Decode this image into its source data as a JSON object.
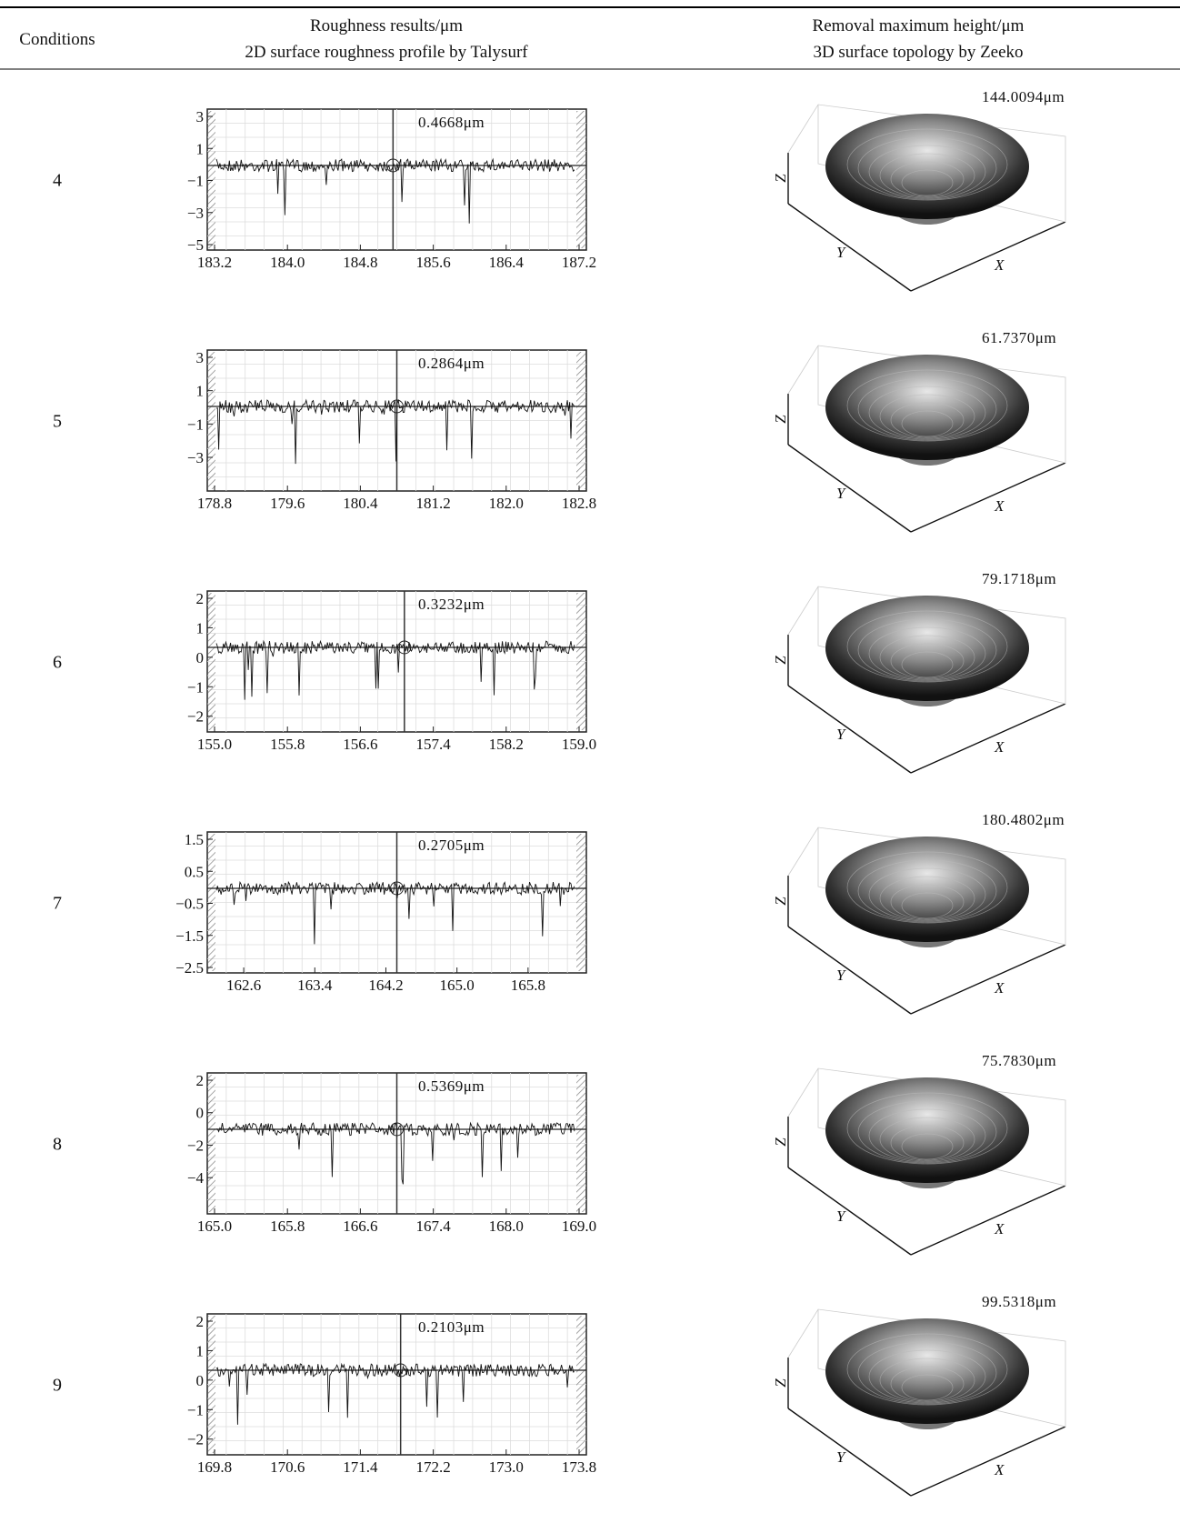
{
  "header": {
    "conditions": "Conditions",
    "roughness_title": "Roughness results/μm",
    "roughness_subtitle": "2D surface roughness profile by Talysurf",
    "removal_title": "Removal maximum height/μm",
    "removal_subtitle": "3D surface topology by Zeeko"
  },
  "axes": {
    "z": "Z",
    "y": "Y",
    "x": "X"
  },
  "rows": [
    {
      "condition": "4",
      "roughness": "0.4668μm",
      "y_ticks": [
        "3",
        "1",
        "−1",
        "−3",
        "−5"
      ],
      "x_ticks": [
        "183.2",
        "184.0",
        "184.8",
        "185.6",
        "186.4",
        "187.2"
      ],
      "removal_height": "144.0094μm"
    },
    {
      "condition": "5",
      "roughness": "0.2864μm",
      "y_ticks": [
        "3",
        "1",
        "−1",
        "−3"
      ],
      "x_ticks": [
        "178.8",
        "179.6",
        "180.4",
        "181.2",
        "182.0",
        "182.8"
      ],
      "removal_height": "61.7370μm"
    },
    {
      "condition": "6",
      "roughness": "0.3232μm",
      "y_ticks": [
        "2",
        "1",
        "0",
        "−1",
        "−2"
      ],
      "x_ticks": [
        "155.0",
        "155.8",
        "156.6",
        "157.4",
        "158.2",
        "159.0"
      ],
      "removal_height": "79.1718μm"
    },
    {
      "condition": "7",
      "roughness": "0.2705μm",
      "y_ticks": [
        "1.5",
        "0.5",
        "−0.5",
        "−1.5",
        "−2.5"
      ],
      "x_ticks": [
        "162.6",
        "163.4",
        "164.2",
        "165.0",
        "165.8"
      ],
      "removal_height": "180.4802μm"
    },
    {
      "condition": "8",
      "roughness": "0.5369μm",
      "y_ticks": [
        "2",
        "0",
        "−2",
        "−4"
      ],
      "x_ticks": [
        "165.0",
        "165.8",
        "166.6",
        "167.4",
        "168.0",
        "169.0"
      ],
      "removal_height": "75.7830μm"
    },
    {
      "condition": "9",
      "roughness": "0.2103μm",
      "y_ticks": [
        "2",
        "1",
        "0",
        "−1",
        "−2"
      ],
      "x_ticks": [
        "169.8",
        "170.6",
        "171.4",
        "172.2",
        "173.0",
        "173.8"
      ],
      "removal_height": "99.5318μm"
    }
  ]
}
